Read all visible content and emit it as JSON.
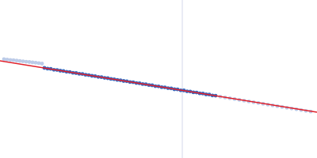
{
  "chart_data": {
    "type": "scatter",
    "xlim": [
      0,
      400
    ],
    "ylim": [
      0,
      200
    ],
    "tick_labels": false,
    "grid": false,
    "vline": {
      "x": 230,
      "color": "#d3d8ea"
    },
    "series": [
      {
        "type": "scatter",
        "marker": "circle",
        "color": "#bccbe8",
        "x": [
          5,
          9,
          13,
          17,
          21,
          25,
          29,
          33,
          37,
          41,
          45,
          49,
          53,
          278,
          284,
          290,
          296,
          302,
          308,
          314,
          320,
          326,
          332,
          338,
          344,
          350,
          356,
          362,
          368,
          374,
          380,
          386,
          392
        ],
        "values": [
          125,
          124.6,
          124.2,
          123.8,
          123.3,
          122.8,
          122.4,
          121.9,
          121.5,
          121.0,
          120.6,
          120.1,
          119.5,
          77.6,
          76.6,
          75.6,
          74.6,
          73.6,
          72.6,
          71.6,
          70.6,
          69.6,
          68.6,
          67.6,
          66.6,
          65.6,
          64.6,
          63.6,
          62.7,
          61.7,
          60.7,
          59.7,
          58.8
        ]
      },
      {
        "type": "scatter",
        "marker": "circle",
        "color": "#3a6bbf",
        "x": [
          56,
          60,
          64,
          68,
          72,
          76,
          80,
          84,
          88,
          92,
          96,
          100,
          104,
          108,
          112,
          116,
          120,
          124,
          128,
          132,
          136,
          140,
          144,
          148,
          152,
          156,
          160,
          164,
          168,
          172,
          176,
          180,
          184,
          188,
          192,
          196,
          200,
          204,
          208,
          212,
          216,
          220,
          224,
          228,
          232,
          236,
          240,
          244,
          248,
          252,
          256,
          260,
          264,
          268,
          272
        ],
        "values": [
          114.0,
          113.1,
          112.8,
          111.7,
          111.4,
          110.5,
          110.1,
          109.2,
          108.9,
          107.8,
          107.5,
          106.6,
          106.3,
          105.3,
          104.9,
          104.0,
          103.6,
          102.7,
          102.3,
          101.4,
          101.0,
          100.1,
          99.7,
          98.8,
          98.4,
          97.5,
          97.2,
          96.2,
          95.9,
          94.9,
          94.6,
          93.6,
          93.3,
          92.3,
          92.0,
          90.9,
          90.7,
          89.6,
          89.4,
          88.4,
          88.1,
          87.0,
          86.8,
          85.7,
          85.5,
          84.4,
          84.2,
          83.1,
          82.9,
          81.8,
          81.6,
          80.5,
          80.3,
          79.2,
          78.9
        ]
      },
      {
        "type": "line",
        "line_style": "solid",
        "color": "#e0202a",
        "x": [
          0,
          400
        ],
        "values": [
          123,
          58
        ]
      }
    ]
  }
}
